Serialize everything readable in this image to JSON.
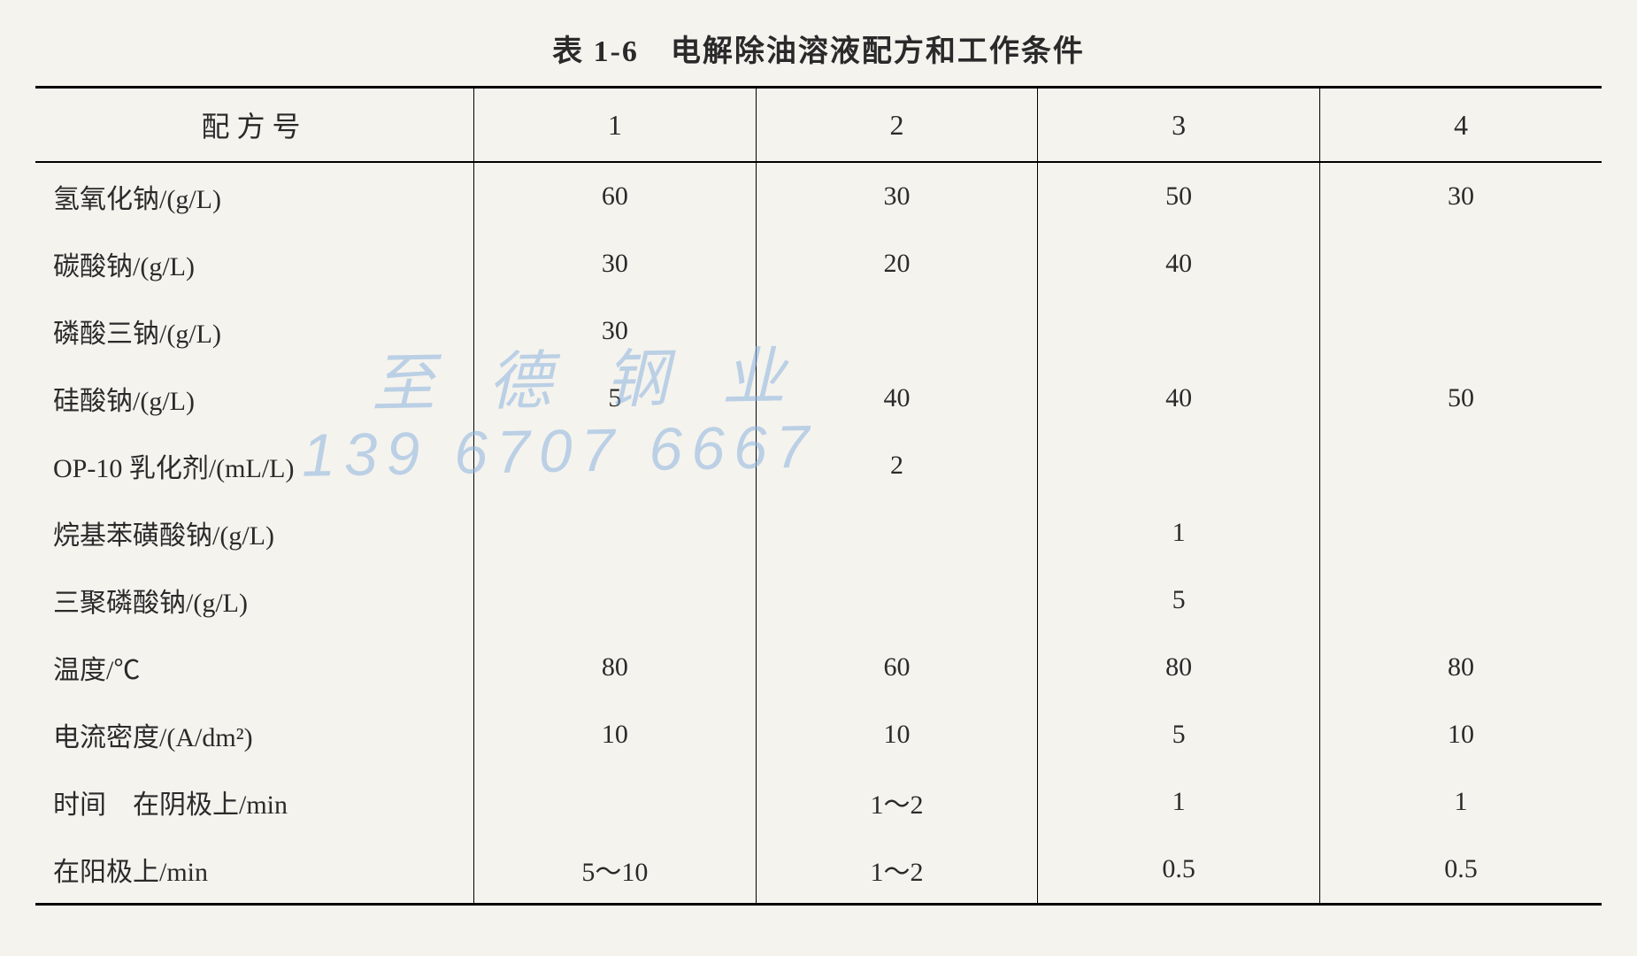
{
  "title": "表 1-6　电解除油溶液配方和工作条件",
  "watermark": {
    "line1": "至 德 钢 业",
    "line2": "139 6707 6667"
  },
  "table": {
    "header": {
      "label": "配方号",
      "cols": [
        "1",
        "2",
        "3",
        "4"
      ]
    },
    "rows": [
      {
        "label": "氢氧化钠/(g/L)",
        "cells": [
          "60",
          "30",
          "50",
          "30"
        ]
      },
      {
        "label": "碳酸钠/(g/L)",
        "cells": [
          "30",
          "20",
          "40",
          ""
        ]
      },
      {
        "label": "磷酸三钠/(g/L)",
        "cells": [
          "30",
          "",
          "",
          ""
        ]
      },
      {
        "label": "硅酸钠/(g/L)",
        "cells": [
          "5",
          "40",
          "40",
          "50"
        ]
      },
      {
        "label": "OP-10 乳化剂/(mL/L)",
        "cells": [
          "",
          "2",
          "",
          ""
        ]
      },
      {
        "label": "烷基苯磺酸钠/(g/L)",
        "cells": [
          "",
          "",
          "1",
          ""
        ]
      },
      {
        "label": "三聚磷酸钠/(g/L)",
        "cells": [
          "",
          "",
          "5",
          ""
        ]
      },
      {
        "label": "温度/℃",
        "cells": [
          "80",
          "60",
          "80",
          "80"
        ]
      },
      {
        "label": "电流密度/(A/dm²)",
        "cells": [
          "10",
          "10",
          "5",
          "10"
        ]
      },
      {
        "label": "时间　在阴极上/min",
        "cells": [
          "",
          "1～2",
          "1",
          "1"
        ]
      },
      {
        "label": "在阳极上/min",
        "cells": [
          "5～10",
          "1～2",
          "0.5",
          "0.5"
        ],
        "indent": true
      }
    ]
  }
}
